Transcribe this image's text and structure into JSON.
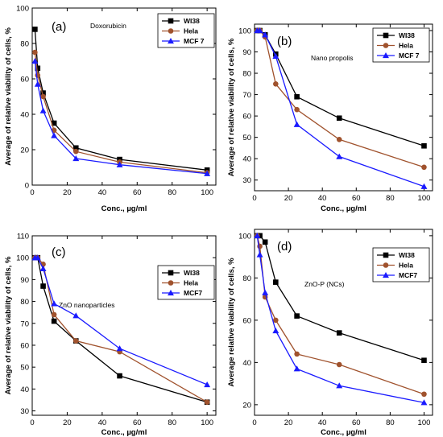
{
  "colors": {
    "wi38": "#000000",
    "hela": "#a0522d",
    "mcf7": "#1a1aff",
    "axis": "#000000"
  },
  "chart_data": [
    {
      "type": "line",
      "panel_label": "(a)",
      "annotation": "Doxorubicin",
      "xlabel": "Conc., µg/ml",
      "ylabel": "Average of relative viability of cells, %",
      "xlim": [
        0,
        105
      ],
      "ylim": [
        0,
        100
      ],
      "xticks": [
        0,
        20,
        40,
        60,
        80,
        100
      ],
      "yticks": [
        0,
        20,
        40,
        60,
        80,
        100
      ],
      "legend_position": "top-right",
      "grid": false,
      "series": [
        {
          "name": "WI38",
          "marker": "square",
          "x": [
            1.56,
            3.125,
            6.25,
            12.5,
            25,
            50,
            100
          ],
          "y": [
            88,
            66,
            52,
            35,
            21,
            14.5,
            8.5
          ]
        },
        {
          "name": "Hela",
          "marker": "circle",
          "x": [
            1.56,
            3.125,
            6.25,
            12.5,
            25,
            50,
            100
          ],
          "y": [
            75,
            62,
            50,
            31,
            19,
            13,
            7
          ]
        },
        {
          "name": "MCF 7",
          "marker": "triangle",
          "x": [
            1.56,
            3.125,
            6.25,
            12.5,
            25,
            50,
            100
          ],
          "y": [
            70,
            57,
            42,
            28,
            15,
            11.5,
            6.5
          ]
        }
      ]
    },
    {
      "type": "line",
      "panel_label": "(b)",
      "annotation": "Nano propolis",
      "xlabel": "Conc., µg/ml",
      "ylabel": "Average of relative viability of cells, %",
      "xlim": [
        0,
        105
      ],
      "ylim": [
        25,
        103
      ],
      "xticks": [
        0,
        20,
        40,
        60,
        80,
        100
      ],
      "yticks": [
        30,
        40,
        50,
        60,
        70,
        80,
        90,
        100
      ],
      "legend_position": "top-right",
      "grid": false,
      "series": [
        {
          "name": "WI38",
          "marker": "square",
          "x": [
            1.56,
            3.125,
            6.25,
            12.5,
            25,
            50,
            100
          ],
          "y": [
            100,
            100,
            98,
            89,
            69,
            59,
            46
          ]
        },
        {
          "name": "Hela",
          "marker": "circle",
          "x": [
            1.56,
            3.125,
            6.25,
            12.5,
            25,
            50,
            100
          ],
          "y": [
            100,
            100,
            97,
            75,
            63,
            49,
            36
          ]
        },
        {
          "name": "MCF 7",
          "marker": "triangle",
          "x": [
            1.56,
            3.125,
            6.25,
            12.5,
            25,
            50,
            100
          ],
          "y": [
            100,
            100,
            98,
            88,
            56,
            41,
            27
          ]
        }
      ]
    },
    {
      "type": "line",
      "panel_label": "(c)",
      "annotation": "ZnO nanoparticles",
      "xlabel": "Conc., µg/ml",
      "ylabel": "Average of relative viability of cells, %",
      "xlim": [
        0,
        105
      ],
      "ylim": [
        28,
        110
      ],
      "xticks": [
        0,
        20,
        40,
        60,
        80,
        100
      ],
      "yticks": [
        30,
        40,
        50,
        60,
        70,
        80,
        90,
        100,
        110
      ],
      "legend_position": "right",
      "grid": false,
      "series": [
        {
          "name": "WI38",
          "marker": "square",
          "x": [
            1.56,
            3.125,
            6.25,
            12.5,
            25,
            50,
            100
          ],
          "y": [
            100,
            100,
            87,
            71,
            62,
            46,
            34
          ]
        },
        {
          "name": "Hela",
          "marker": "circle",
          "x": [
            1.56,
            3.125,
            6.25,
            12.5,
            25,
            50,
            100
          ],
          "y": [
            100,
            100,
            97,
            74,
            62,
            57,
            34
          ]
        },
        {
          "name": "MCF7",
          "marker": "triangle",
          "x": [
            1.56,
            3.125,
            6.25,
            12.5,
            25,
            50,
            100
          ],
          "y": [
            100,
            100,
            95,
            79,
            73.5,
            58.5,
            42
          ]
        }
      ]
    },
    {
      "type": "line",
      "panel_label": "(d)",
      "annotation": "ZnO-P (NCs)",
      "xlabel": "Conc., µg/ml",
      "ylabel": "Average relative viability of cells, %",
      "xlim": [
        0,
        105
      ],
      "ylim": [
        15,
        103
      ],
      "xticks": [
        0,
        20,
        40,
        60,
        80,
        100
      ],
      "yticks": [
        20,
        40,
        60,
        80,
        100
      ],
      "legend_position": "top-right",
      "grid": false,
      "series": [
        {
          "name": "WI38",
          "marker": "square",
          "x": [
            1.56,
            3.125,
            6.25,
            12.5,
            25,
            50,
            100
          ],
          "y": [
            100,
            100,
            97,
            78,
            62,
            54,
            41
          ]
        },
        {
          "name": "Hela",
          "marker": "circle",
          "x": [
            1.56,
            3.125,
            6.25,
            12.5,
            25,
            50,
            100
          ],
          "y": [
            100,
            95,
            71,
            60,
            44,
            39,
            25
          ]
        },
        {
          "name": "MCF7",
          "marker": "triangle",
          "x": [
            1.56,
            3.125,
            6.25,
            12.5,
            25,
            50,
            100
          ],
          "y": [
            100,
            91,
            73,
            55,
            37,
            29,
            21
          ]
        }
      ]
    }
  ]
}
